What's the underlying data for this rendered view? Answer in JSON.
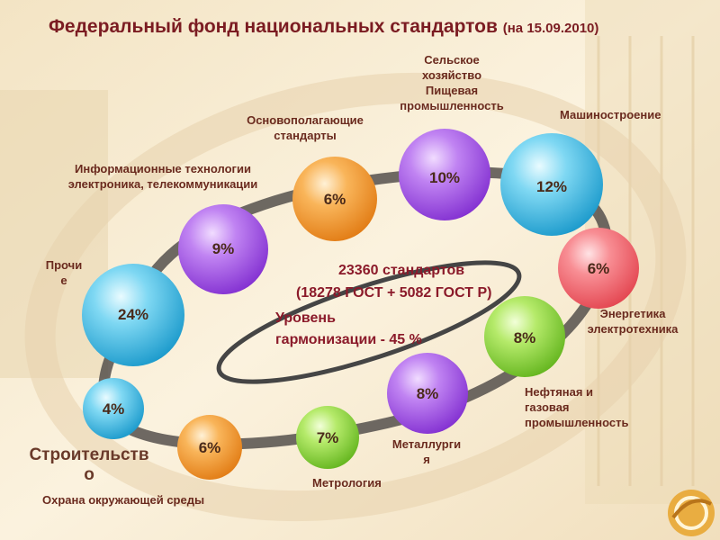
{
  "title": "Федеральный фонд национальных стандартов",
  "title_date": "(на 15.09.2010)",
  "center": {
    "line1": "23360 стандартов",
    "line2": "(18278 ГОСТ + 5082 ГОСТ Р)",
    "line3": "Уровень",
    "line4": "гармонизации - 45 %"
  },
  "bubbles": [
    {
      "key": "prochie",
      "pct": "24%",
      "color": "cyan"
    },
    {
      "key": "it",
      "pct": "9%",
      "color": "violet"
    },
    {
      "key": "osnov",
      "pct": "6%",
      "color": "orange"
    },
    {
      "key": "selkhoz",
      "pct": "10%",
      "color": "violet"
    },
    {
      "key": "mash",
      "pct": "12%",
      "color": "cyan"
    },
    {
      "key": "energ",
      "pct": "6%",
      "color": "red"
    },
    {
      "key": "neft",
      "pct": "8%",
      "color": "green"
    },
    {
      "key": "metall",
      "pct": "8%",
      "color": "violet"
    },
    {
      "key": "metro",
      "pct": "7%",
      "color": "green"
    },
    {
      "key": "okhrana",
      "pct": "6%",
      "color": "orange"
    },
    {
      "key": "stroit",
      "pct": "4%",
      "color": "cyan"
    }
  ],
  "labels": {
    "selkhoz": [
      "Сельское",
      "хозяйство",
      "Пищевая",
      "промышленность"
    ],
    "mash": "Машиностроение",
    "osnov": [
      "Основополагающие",
      "стандарты"
    ],
    "it": [
      "Информационные технологии",
      "электроника, телекоммуникации"
    ],
    "prochie": [
      "Прочи",
      "е"
    ],
    "energ": [
      "Энергетика",
      "электротехника"
    ],
    "neft": [
      "Нефтяная и",
      "газовая",
      "промышленность"
    ],
    "metall": [
      "Металлурги",
      "я"
    ],
    "metro": "Метрология",
    "stroit": [
      "Строительств",
      "о"
    ],
    "okhrana": "Охрана окружающей среды"
  },
  "colors": {
    "title": "#7b1c22",
    "center_text": "#8b1a2a",
    "label": "#6a2a1e",
    "cyan": "#3ab8e0",
    "violet": "#a24ee0",
    "orange": "#f39a2e",
    "red": "#f26a72",
    "green": "#8fd63a"
  }
}
